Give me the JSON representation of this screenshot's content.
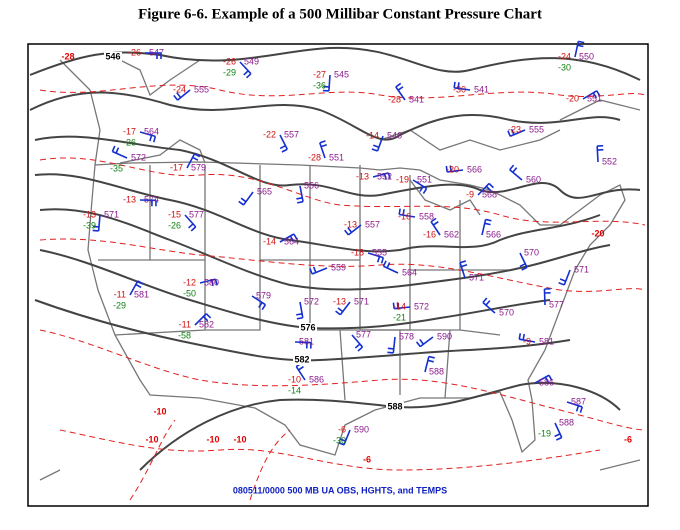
{
  "title": "Figure 6-6. Example of a 500 Millibar Constant Pressure Chart",
  "caption": "080511/0000 500 MB UA OBS, HGHTS, and TEMPS",
  "contour_labels": [
    "546",
    "576",
    "582",
    "588"
  ],
  "isotherm_labels": [
    "-28",
    "-20",
    "-10",
    "-10",
    "-10",
    "-10",
    "-6",
    "-6"
  ],
  "stations": [
    {
      "height": "547",
      "temp": "-26"
    },
    {
      "height": "549",
      "temp": "-26",
      "dew": "-29"
    },
    {
      "height": "545",
      "temp": "-27",
      "dew": "-36"
    },
    {
      "height": "555",
      "temp": "-24"
    },
    {
      "height": "541",
      "temp": "-30"
    },
    {
      "height": "541",
      "temp": "-28"
    },
    {
      "height": "550",
      "temp": "-24",
      "dew": "-30"
    },
    {
      "height": "551",
      "temp": "-20"
    },
    {
      "height": "564",
      "temp": "-17",
      "dew": "-26"
    },
    {
      "height": "557",
      "temp": "-22"
    },
    {
      "height": "546",
      "temp": "-14"
    },
    {
      "height": "555",
      "temp": "-23"
    },
    {
      "height": "572",
      "dew": "-35"
    },
    {
      "height": "551",
      "temp": "-28"
    },
    {
      "height": "579",
      "temp": "-17"
    },
    {
      "height": "552",
      "temp": "-13"
    },
    {
      "height": "551",
      "temp": "-19"
    },
    {
      "height": "556"
    },
    {
      "height": "565"
    },
    {
      "height": "566",
      "temp": "-20"
    },
    {
      "height": "560"
    },
    {
      "height": "552"
    },
    {
      "height": "568",
      "temp": "-9"
    },
    {
      "height": "574",
      "temp": "-13"
    },
    {
      "height": "577",
      "temp": "-15",
      "dew": "-26"
    },
    {
      "height": "571",
      "temp": "-13",
      "dew": "-39"
    },
    {
      "height": "557",
      "temp": "-13"
    },
    {
      "height": "558",
      "temp": "-16"
    },
    {
      "height": "562",
      "temp": "-16"
    },
    {
      "height": "566"
    },
    {
      "height": "564",
      "temp": "-14"
    },
    {
      "height": "555",
      "temp": "-18"
    },
    {
      "height": "570"
    },
    {
      "height": "571"
    },
    {
      "height": "559"
    },
    {
      "height": "564"
    },
    {
      "height": "571"
    },
    {
      "height": "581",
      "temp": "-11",
      "dew": "-29"
    },
    {
      "height": "580",
      "temp": "-12",
      "dew": "-50"
    },
    {
      "height": "579"
    },
    {
      "height": "572"
    },
    {
      "height": "571",
      "temp": "-13"
    },
    {
      "height": "572",
      "temp": "-14",
      "dew": "-21"
    },
    {
      "height": "570"
    },
    {
      "height": "577"
    },
    {
      "height": "582",
      "temp": "-11",
      "dew": "-58"
    },
    {
      "height": "581"
    },
    {
      "height": "577"
    },
    {
      "height": "578"
    },
    {
      "height": "590"
    },
    {
      "height": "581",
      "temp": "-9"
    },
    {
      "height": "586",
      "temp": "-10",
      "dew": "-14"
    },
    {
      "height": "588"
    },
    {
      "height": "586"
    },
    {
      "height": "587"
    },
    {
      "height": "588",
      "dew": "-19"
    },
    {
      "height": "590",
      "temp": "-6",
      "dew": "-30"
    }
  ]
}
